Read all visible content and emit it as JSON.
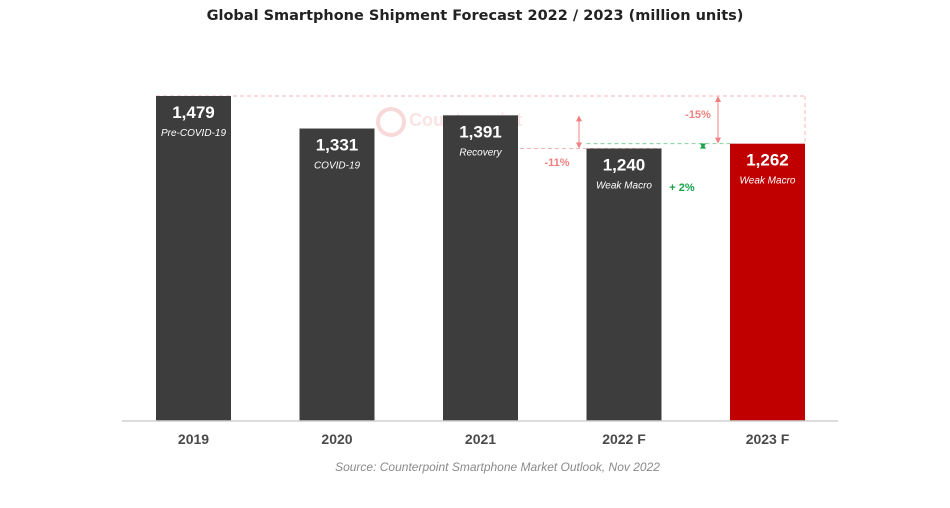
{
  "chart_data": {
    "type": "bar",
    "title": "Global Smartphone Shipment Forecast 2022 / 2023 (million units)",
    "categories": [
      "2019",
      "2020",
      "2021",
      "2022 F",
      "2023 F"
    ],
    "values": [
      1479,
      1331,
      1391,
      1240,
      1262
    ],
    "value_labels": [
      "1,479",
      "1,331",
      "1,391",
      "1,240",
      "1,262"
    ],
    "bar_annotations": [
      "Pre-COVID-19",
      "COVID-19",
      "Recovery",
      "Weak Macro",
      "Weak Macro"
    ],
    "colors": [
      "#3d3d3d",
      "#3d3d3d",
      "#3d3d3d",
      "#3d3d3d",
      "#c00000"
    ],
    "ylim": [
      0,
      1479
    ],
    "xlabel": "",
    "ylabel": "",
    "grid": false,
    "change_annotations": [
      {
        "label": "-15%",
        "from": "2019",
        "to": "2023 F",
        "color": "#f08080"
      },
      {
        "label": "-11%",
        "from": "2021",
        "to": "2022 F",
        "color": "#f08080"
      },
      {
        "label": "+ 2%",
        "from": "2022 F",
        "to": "2023 F",
        "color": "#1aa34a"
      }
    ],
    "watermark": "Counterpoint",
    "source": "Source: Counterpoint Smartphone Market Outlook, Nov 2022"
  }
}
